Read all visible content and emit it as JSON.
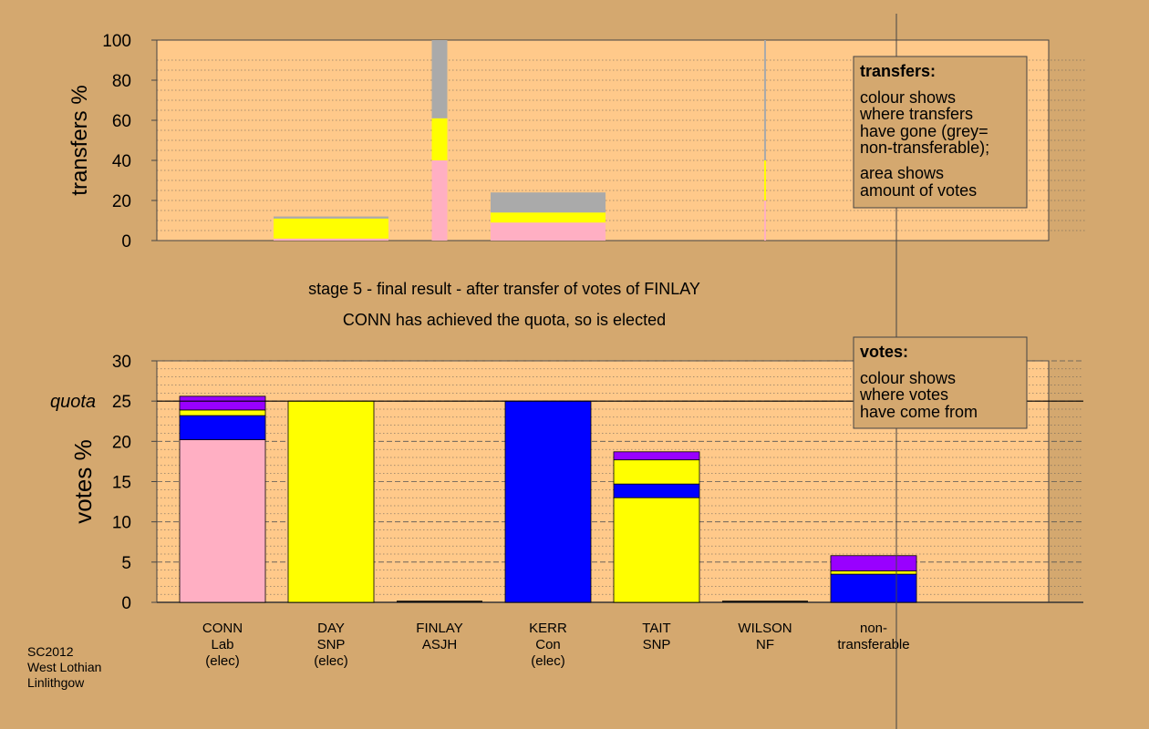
{
  "colors": {
    "background": "#d4a86f",
    "plot_bg": "#ffc98a",
    "Lab": "#ffafc3",
    "SNP": "#ffff00",
    "Con": "#0000ff",
    "other": "#9900ff",
    "nontransferable": "#aaaaaa"
  },
  "titles": {
    "line1": "stage 5 - final result - after transfer of votes of FINLAY",
    "line2": "CONN has achieved the quota, so is elected"
  },
  "footer": [
    "SC2012",
    "West Lothian",
    "Linlithgow"
  ],
  "legend_transfers": {
    "title": "transfers:",
    "lines": [
      "colour shows",
      "where transfers",
      "have gone (grey=",
      "non-transferable);",
      "area shows",
      "amount of votes"
    ]
  },
  "legend_votes": {
    "title": "votes:",
    "lines": [
      "colour shows",
      "where votes",
      "have come from"
    ]
  },
  "chart_data": [
    {
      "type": "bar",
      "name": "transfers",
      "ylabel": "transfers %",
      "ylim": [
        0,
        100
      ],
      "yticks": [
        0,
        20,
        40,
        60,
        80,
        100
      ],
      "grid": "dotted",
      "bars": [
        {
          "candidate": "DAY",
          "slot": 1,
          "width": "wide",
          "segments": [
            {
              "color": "Lab",
              "value": 1
            },
            {
              "color": "SNP",
              "value": 10
            },
            {
              "color": "nontransferable",
              "value": 1
            }
          ]
        },
        {
          "candidate": "FINLAY",
          "slot": 2,
          "width": "narrow",
          "segments": [
            {
              "color": "Lab",
              "value": 40
            },
            {
              "color": "SNP",
              "value": 21
            },
            {
              "color": "nontransferable",
              "value": 39
            }
          ]
        },
        {
          "candidate": "KERR",
          "slot": 3,
          "width": "wide",
          "segments": [
            {
              "color": "Lab",
              "value": 9
            },
            {
              "color": "SNP",
              "value": 5
            },
            {
              "color": "nontransferable",
              "value": 10
            }
          ]
        },
        {
          "candidate": "WILSON",
          "slot": 5,
          "width": "hairline",
          "segments": [
            {
              "color": "Lab",
              "value": 20
            },
            {
              "color": "SNP",
              "value": 20
            },
            {
              "color": "nontransferable",
              "value": 60
            }
          ]
        }
      ]
    },
    {
      "type": "bar",
      "name": "votes",
      "ylabel": "votes %",
      "ylim": [
        0,
        30
      ],
      "yticks": [
        0,
        5,
        10,
        15,
        20,
        25,
        30
      ],
      "quota": 25,
      "quota_label": "quota",
      "grid": "dashed",
      "categories": [
        [
          "CONN",
          "Lab",
          "(elec)"
        ],
        [
          "DAY",
          "SNP",
          "(elec)"
        ],
        [
          "FINLAY",
          "ASJH"
        ],
        [
          "KERR",
          "Con",
          "(elec)"
        ],
        [
          "TAIT",
          "SNP"
        ],
        [
          "WILSON",
          "NF"
        ],
        [
          "non-",
          "transferable"
        ]
      ],
      "stacks": [
        [
          {
            "color": "Lab",
            "value": 20.2
          },
          {
            "color": "Con",
            "value": 3.0
          },
          {
            "color": "SNP",
            "value": 0.7
          },
          {
            "color": "other",
            "value": 1.7
          }
        ],
        [
          {
            "color": "SNP",
            "value": 25.0
          }
        ],
        [],
        [
          {
            "color": "Con",
            "value": 25.0
          }
        ],
        [
          {
            "color": "SNP",
            "value": 13.0
          },
          {
            "color": "Con",
            "value": 1.7
          },
          {
            "color": "SNP",
            "value": 3.0
          },
          {
            "color": "other",
            "value": 1.0
          }
        ],
        [],
        [
          {
            "color": "Con",
            "value": 3.5
          },
          {
            "color": "SNP",
            "value": 0.4
          },
          {
            "color": "other",
            "value": 1.9
          }
        ]
      ]
    }
  ]
}
